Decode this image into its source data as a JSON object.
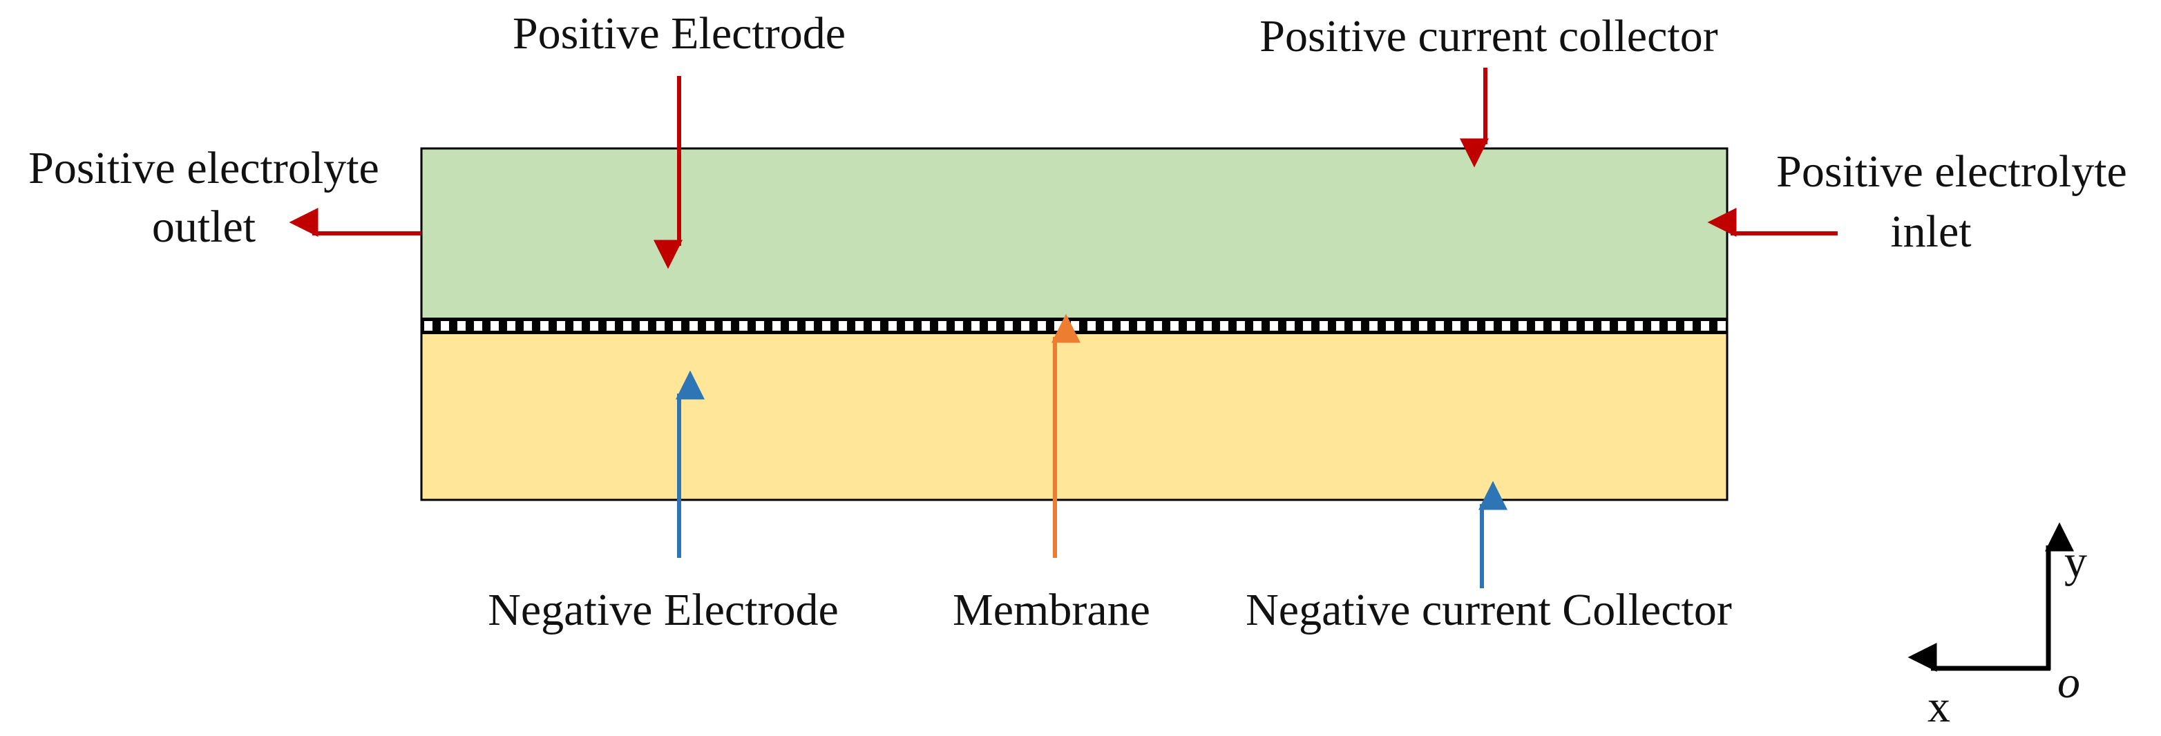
{
  "labels": {
    "positive_electrode": "Positive Electrode",
    "positive_current_collector": "Positive current collector",
    "positive_outlet_line1": "Positive electrolyte",
    "positive_outlet_line2": "outlet",
    "positive_inlet_line1": "Positive electrolyte",
    "positive_inlet_line2": "inlet",
    "negative_electrode": "Negative Electrode",
    "membrane": "Membrane",
    "negative_current_collector": "Negative current Collector"
  },
  "axes": {
    "y_label": "y",
    "x_label": "x",
    "origin_label": "o"
  },
  "colors": {
    "positive_region": "#c5e0b4",
    "negative_region": "#ffe699",
    "positive_arrow": "#c00000",
    "negative_arrow": "#2e75b6",
    "membrane_arrow": "#ed7d31",
    "outline": "#000000"
  }
}
